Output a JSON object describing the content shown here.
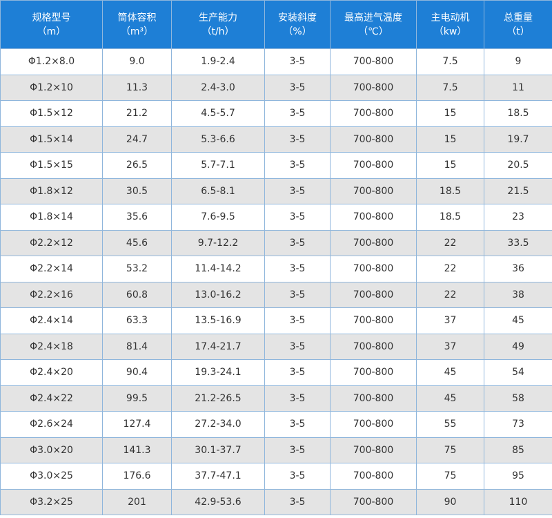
{
  "table": {
    "header": [
      [
        "规格型号",
        "（m）"
      ],
      [
        "筒体容积",
        "（m³）"
      ],
      [
        "生产能力",
        "（t/h）"
      ],
      [
        "安装斜度",
        "（%）"
      ],
      [
        "最高进气温度",
        "（℃）"
      ],
      [
        "主电动机",
        "（kw）"
      ],
      [
        "总重量",
        "（t）"
      ]
    ],
    "rows": [
      [
        "Φ1.2×8.0",
        "9.0",
        "1.9-2.4",
        "3-5",
        "700-800",
        "7.5",
        "9"
      ],
      [
        "Φ1.2×10",
        "11.3",
        "2.4-3.0",
        "3-5",
        "700-800",
        "7.5",
        "11"
      ],
      [
        "Φ1.5×12",
        "21.2",
        "4.5-5.7",
        "3-5",
        "700-800",
        "15",
        "18.5"
      ],
      [
        "Φ1.5×14",
        "24.7",
        "5.3-6.6",
        "3-5",
        "700-800",
        "15",
        "19.7"
      ],
      [
        "Φ1.5×15",
        "26.5",
        "5.7-7.1",
        "3-5",
        "700-800",
        "15",
        "20.5"
      ],
      [
        "Φ1.8×12",
        "30.5",
        "6.5-8.1",
        "3-5",
        "700-800",
        "18.5",
        "21.5"
      ],
      [
        "Φ1.8×14",
        "35.6",
        "7.6-9.5",
        "3-5",
        "700-800",
        "18.5",
        "23"
      ],
      [
        "Φ2.2×12",
        "45.6",
        "9.7-12.2",
        "3-5",
        "700-800",
        "22",
        "33.5"
      ],
      [
        "Φ2.2×14",
        "53.2",
        "11.4-14.2",
        "3-5",
        "700-800",
        "22",
        "36"
      ],
      [
        "Φ2.2×16",
        "60.8",
        "13.0-16.2",
        "3-5",
        "700-800",
        "22",
        "38"
      ],
      [
        "Φ2.4×14",
        "63.3",
        "13.5-16.9",
        "3-5",
        "700-800",
        "37",
        "45"
      ],
      [
        "Φ2.4×18",
        "81.4",
        "17.4-21.7",
        "3-5",
        "700-800",
        "37",
        "49"
      ],
      [
        "Φ2.4×20",
        "90.4",
        "19.3-24.1",
        "3-5",
        "700-800",
        "45",
        "54"
      ],
      [
        "Φ2.4×22",
        "99.5",
        "21.2-26.5",
        "3-5",
        "700-800",
        "45",
        "58"
      ],
      [
        "Φ2.6×24",
        "127.4",
        "27.2-34.0",
        "3-5",
        "700-800",
        "55",
        "73"
      ],
      [
        "Φ3.0×20",
        "141.3",
        "30.1-37.7",
        "3-5",
        "700-800",
        "75",
        "85"
      ],
      [
        "Φ3.0×25",
        "176.6",
        "37.7-47.1",
        "3-5",
        "700-800",
        "75",
        "95"
      ],
      [
        "Φ3.2×25",
        "201",
        "42.9-53.6",
        "3-5",
        "700-800",
        "90",
        "110"
      ]
    ]
  }
}
